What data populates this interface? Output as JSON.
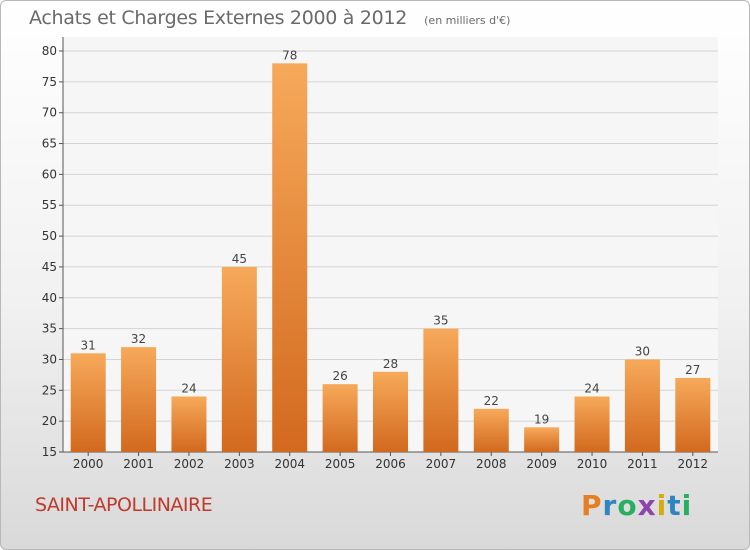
{
  "header": {
    "title": "Achats et Charges Externes 2000 à 2012",
    "subtitle": "(en milliers d'€)"
  },
  "footer": {
    "commune": "SAINT-APOLLINAIRE",
    "logo_text": "Proxiti"
  },
  "colors": {
    "bar_top": "#f7a95a",
    "bar_bottom": "#d2691e",
    "commune": "#c0392b"
  },
  "chart_data": {
    "type": "bar",
    "categories": [
      "2000",
      "2001",
      "2002",
      "2003",
      "2004",
      "2005",
      "2006",
      "2007",
      "2008",
      "2009",
      "2010",
      "2011",
      "2012"
    ],
    "values": [
      31,
      32,
      24,
      45,
      78,
      26,
      28,
      35,
      22,
      19,
      24,
      30,
      27
    ],
    "title": "Achats et Charges Externes 2000 à 2012",
    "subtitle": "(en milliers d'€)",
    "xlabel": "",
    "ylabel": "",
    "ylim": [
      15,
      80
    ],
    "yticks": [
      15,
      20,
      25,
      30,
      35,
      40,
      45,
      50,
      55,
      60,
      65,
      70,
      75,
      80
    ],
    "grid": true,
    "data_labels": true
  }
}
